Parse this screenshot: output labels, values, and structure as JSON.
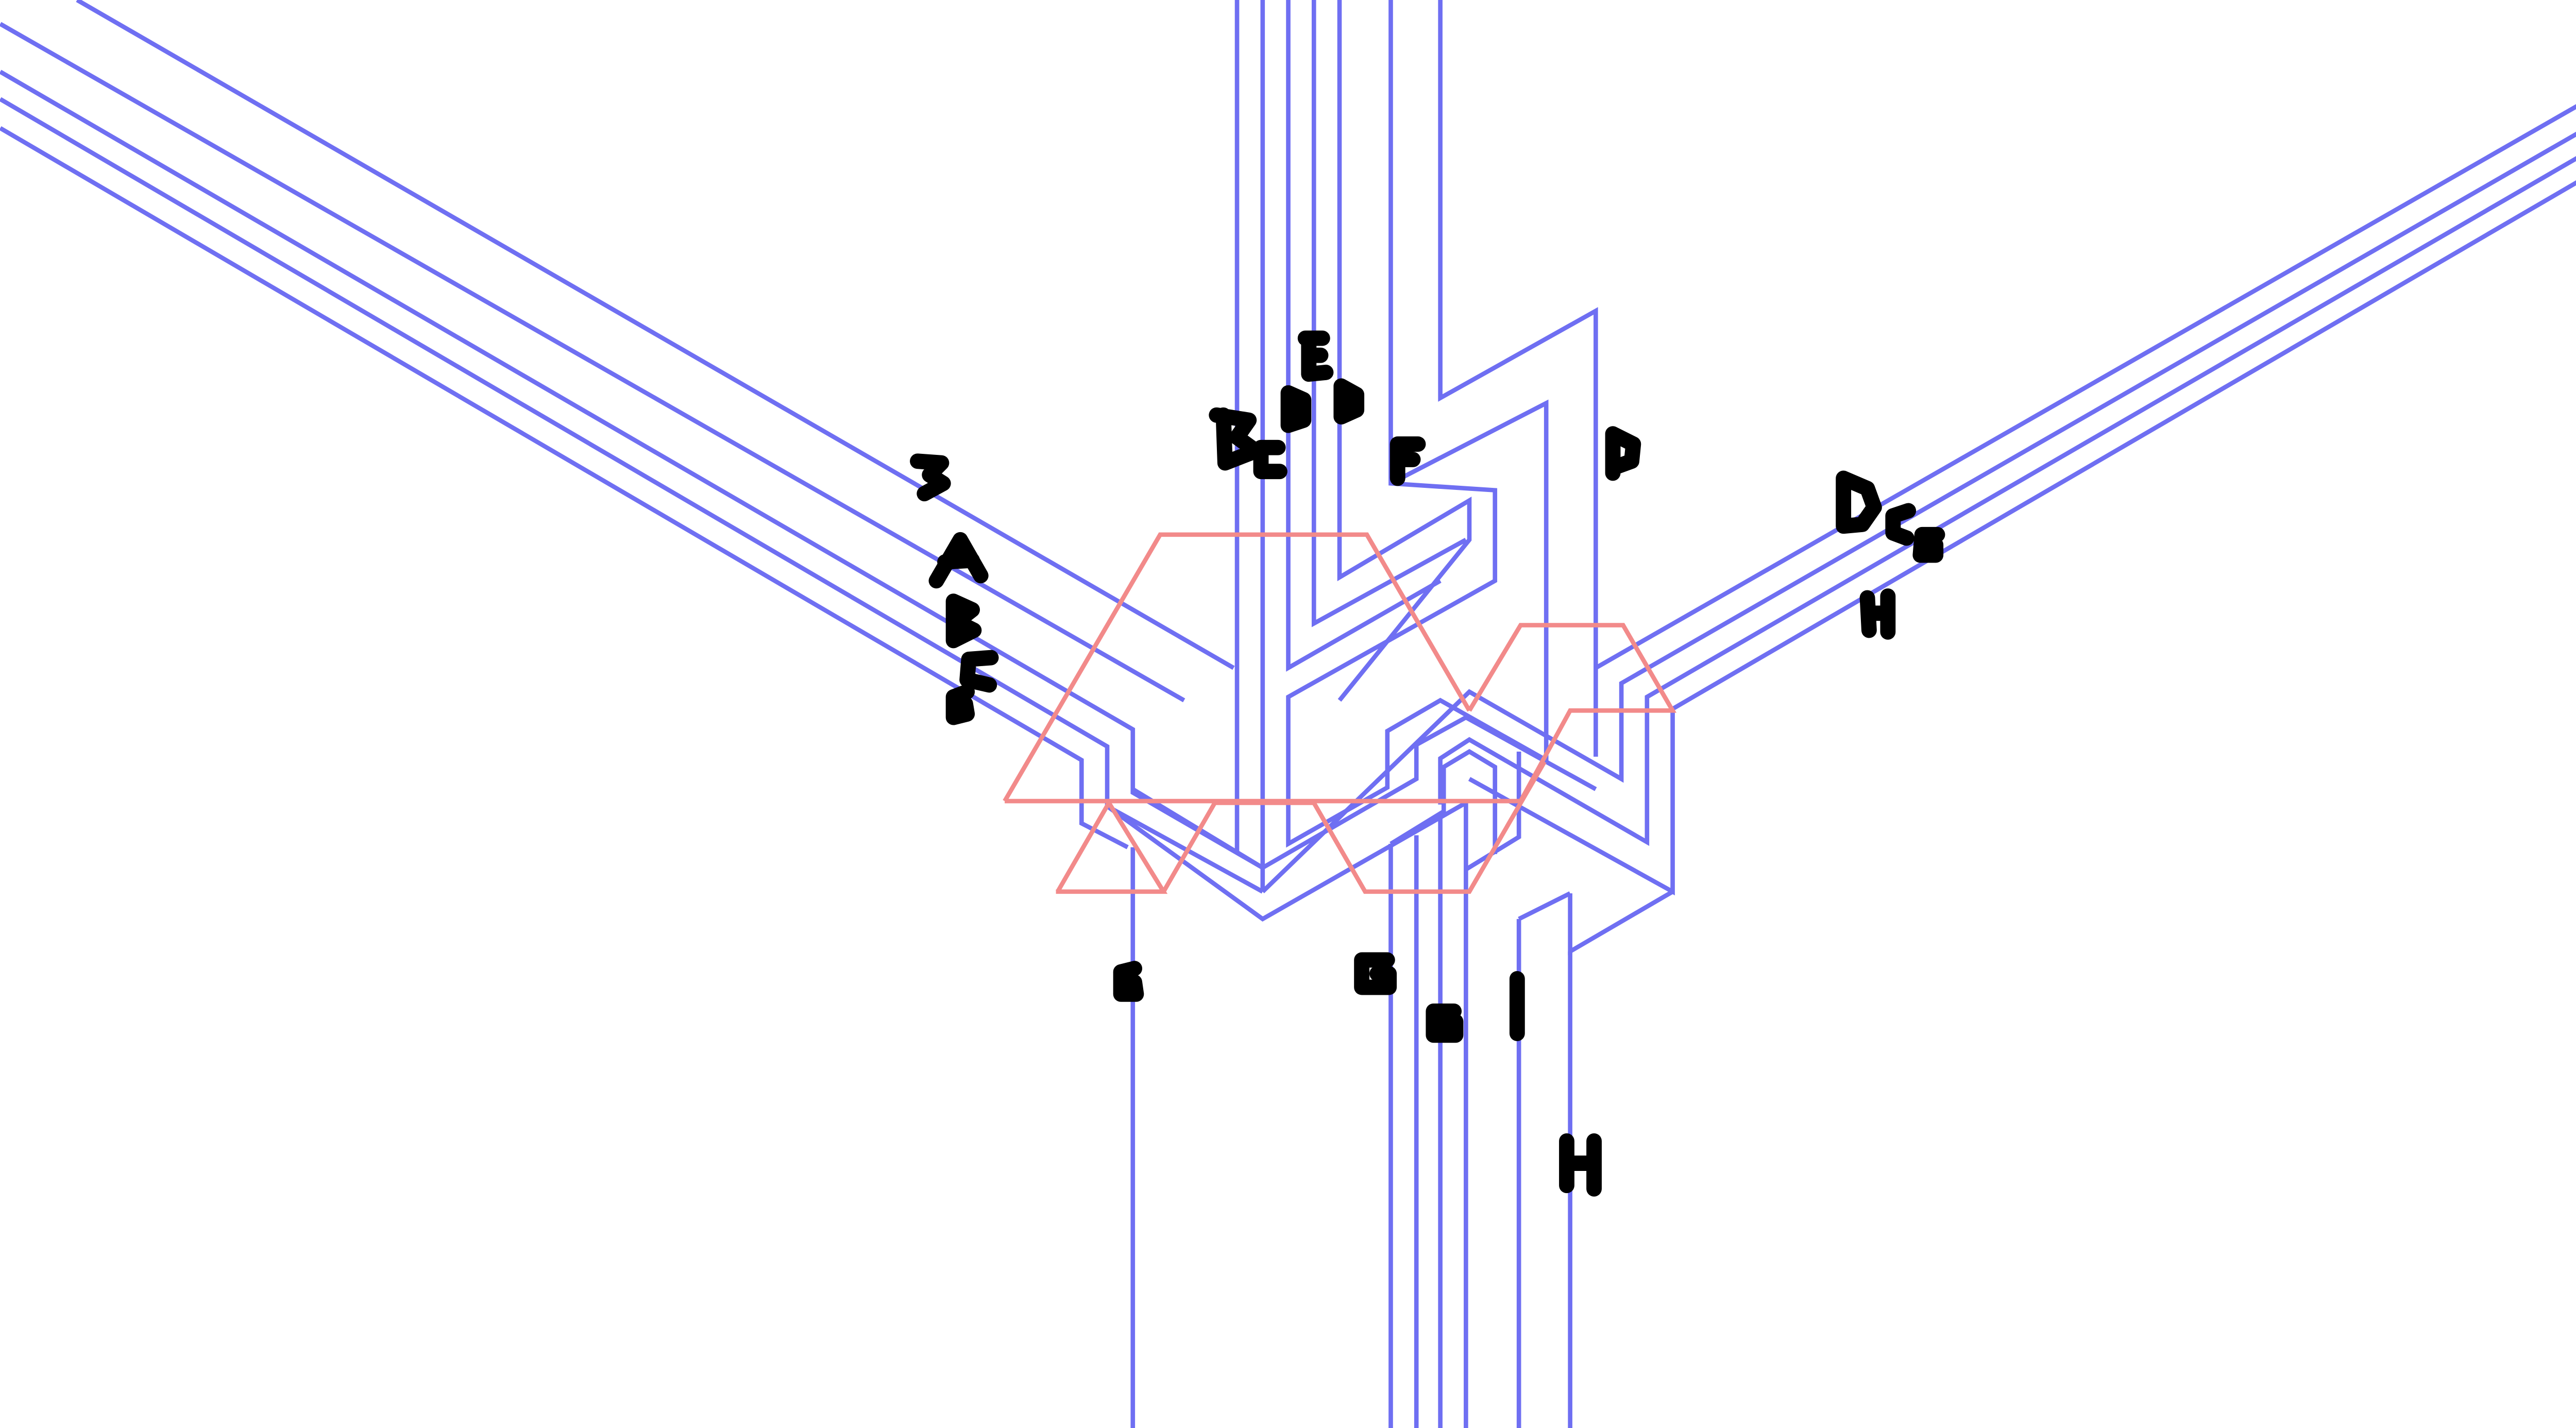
{
  "diagram": {
    "background_color": "#ffffff",
    "wire_color": "#6f6ff2",
    "gate_outline_color": "#f28a8a",
    "handwriting_color": "#000000",
    "labels": {
      "upper_left_b": "B",
      "upper_left_a": "A",
      "upper_left_b2": "B",
      "upper_left_c": "C",
      "upper_left_g": "G",
      "top_b": "B",
      "top_c": "C",
      "top_d": "D",
      "top_e": "E",
      "top_d2": "D",
      "top_f": "F",
      "top_d3": "D",
      "right_d": "D",
      "right_c": "C",
      "right_g": "G",
      "right_h": "H",
      "bottom_g_left": "G",
      "bottom_g_mid": "G",
      "bottom_g_small": "G",
      "bottom_i": "I",
      "bottom_h": "H"
    }
  }
}
